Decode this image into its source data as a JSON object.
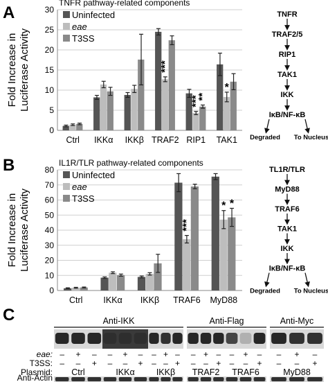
{
  "colors": {
    "uninfected": "#555555",
    "eae": "#bdbdbd",
    "t3ss": "#8a8a8a",
    "grid": "#cfcfcf",
    "blot_dark": "#141414",
    "blot_mid": "#3a3a3a",
    "blot_light": "#d8d8d8"
  },
  "panels": {
    "a": {
      "letter": "A"
    },
    "b": {
      "letter": "B"
    },
    "c": {
      "letter": "C"
    }
  },
  "chart_data": [
    {
      "type": "bar",
      "panel": "A",
      "title": "TNFR pathway-related components",
      "ylabel_lines": [
        "Fold Increase in",
        "Luciferase Activity"
      ],
      "ylim": [
        0,
        30
      ],
      "yticks": [
        0,
        5,
        10,
        15,
        20,
        25,
        30
      ],
      "grid": true,
      "legend_position": "top-left",
      "categories": [
        "Ctrl",
        "IKKα",
        "IKKβ",
        "TRAF2",
        "RIP1",
        "TAK1"
      ],
      "series": [
        {
          "name": "Uninfected",
          "italic": false,
          "color_key": "uninfected",
          "values": [
            1.1,
            8.2,
            8.8,
            24.5,
            9.2,
            16.4
          ],
          "errors": [
            0.2,
            0.5,
            0.6,
            0.8,
            1.0,
            2.8
          ]
        },
        {
          "name": "eae",
          "italic": true,
          "color_key": "eae",
          "values": [
            1.4,
            11.4,
            10.3,
            12.7,
            4.3,
            8.3
          ],
          "errors": [
            0.2,
            0.8,
            0.9,
            0.6,
            0.4,
            1.2
          ]
        },
        {
          "name": "T3SS",
          "italic": false,
          "color_key": "t3ss",
          "values": [
            1.6,
            9.7,
            17.6,
            22.4,
            5.9,
            12.1
          ],
          "errors": [
            0.2,
            1.0,
            6.3,
            1.1,
            0.4,
            2.0
          ]
        }
      ],
      "annotations": [
        {
          "category": "TRAF2",
          "series": "eae",
          "text": "***",
          "rotated": true
        },
        {
          "category": "RIP1",
          "series": "eae",
          "text": "***",
          "rotated": true
        },
        {
          "category": "RIP1",
          "series": "T3SS",
          "text": "**",
          "rotated": true
        },
        {
          "category": "TAK1",
          "series": "eae",
          "text": "*",
          "rotated": false
        }
      ]
    },
    {
      "type": "bar",
      "panel": "B",
      "title": "IL1R/TLR pathway-related components",
      "ylabel_lines": [
        "Fold Increase in",
        "Luciferase Activity"
      ],
      "ylim": [
        0,
        80
      ],
      "yticks": [
        0,
        10,
        20,
        30,
        40,
        50,
        60,
        70,
        80
      ],
      "grid": true,
      "legend_position": "top-left",
      "categories": [
        "Ctrl",
        "IKKα",
        "IKKβ",
        "TRAF6",
        "MyD88"
      ],
      "series": [
        {
          "name": "Uninfected",
          "italic": false,
          "color_key": "uninfected",
          "values": [
            1.5,
            8.5,
            9.0,
            71.5,
            75.5
          ],
          "errors": [
            0.3,
            0.5,
            0.6,
            6.0,
            2.0
          ]
        },
        {
          "name": "eae",
          "italic": true,
          "color_key": "eae",
          "values": [
            1.8,
            11.8,
            11.0,
            34.0,
            47.0
          ],
          "errors": [
            0.3,
            0.6,
            0.8,
            2.5,
            6.0
          ]
        },
        {
          "name": "T3SS",
          "italic": false,
          "color_key": "t3ss",
          "values": [
            2.0,
            10.2,
            18.0,
            69.0,
            48.5
          ],
          "errors": [
            0.3,
            0.7,
            6.0,
            1.5,
            6.0
          ]
        }
      ],
      "annotations": [
        {
          "category": "TRAF6",
          "series": "eae",
          "text": "***",
          "rotated": true
        },
        {
          "category": "MyD88",
          "series": "eae",
          "text": "*",
          "rotated": false
        },
        {
          "category": "MyD88",
          "series": "T3SS",
          "text": "*",
          "rotated": false
        }
      ]
    }
  ],
  "pathway_a": {
    "nodes": [
      "TNFR",
      "TRAF2/5",
      "RIP1",
      "TAK1",
      "IKK",
      "IκB/NF-κB"
    ],
    "outcomes": [
      "Degraded",
      "To Nucleus"
    ]
  },
  "pathway_b": {
    "nodes": [
      "TL1R/TLR",
      "MyD88",
      "TRAF6",
      "TAK1",
      "IKK",
      "IκB/NF-κB"
    ],
    "outcomes": [
      "Degraded",
      "To Nucleus"
    ]
  },
  "blot": {
    "headers": [
      "Anti-IKK",
      "Anti-Flag",
      "Anti-Myc"
    ],
    "row_labels": {
      "eae": "eae:",
      "t3ss": "T3SS:",
      "plasmid": "Plasmid:",
      "actin": "Anti-Actin"
    },
    "lanes": [
      {
        "group": 0,
        "eae": "–",
        "t3ss": "–"
      },
      {
        "group": 0,
        "eae": "+",
        "t3ss": "–"
      },
      {
        "group": 0,
        "eae": "–",
        "t3ss": "+"
      },
      {
        "group": 1,
        "eae": "–",
        "t3ss": "–"
      },
      {
        "group": 1,
        "eae": "+",
        "t3ss": "–"
      },
      {
        "group": 1,
        "eae": "–",
        "t3ss": "+"
      },
      {
        "group": 2,
        "eae": "–",
        "t3ss": "–"
      },
      {
        "group": 2,
        "eae": "+",
        "t3ss": "–"
      },
      {
        "group": 2,
        "eae": "–",
        "t3ss": "+"
      },
      {
        "group": 3,
        "eae": "–",
        "t3ss": "–"
      },
      {
        "group": 3,
        "eae": "+",
        "t3ss": "–"
      },
      {
        "group": 3,
        "eae": "–",
        "t3ss": "+"
      },
      {
        "group": 4,
        "eae": "–",
        "t3ss": "–"
      },
      {
        "group": 4,
        "eae": "+",
        "t3ss": "–"
      },
      {
        "group": 4,
        "eae": "–",
        "t3ss": "+"
      },
      {
        "group": 5,
        "eae": "–",
        "t3ss": "–"
      },
      {
        "group": 5,
        "eae": "+",
        "t3ss": "–"
      },
      {
        "group": 5,
        "eae": "–",
        "t3ss": "+"
      }
    ],
    "plasmids": [
      "Ctrl",
      "IKKα",
      "IKKβ",
      "TRAF2",
      "TRAF6",
      "MyD88"
    ]
  }
}
